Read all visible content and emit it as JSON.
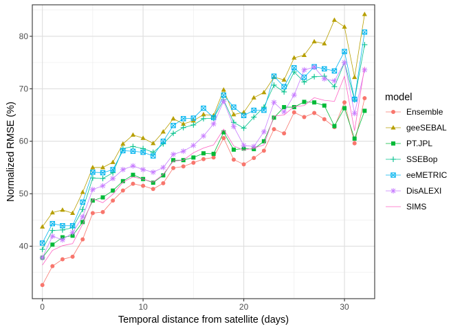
{
  "chart_data": {
    "type": "line",
    "xlabel": "Temporal distance from satellite (days)",
    "ylabel": "Normalized RMSE (%)",
    "xlim": [
      -1,
      33
    ],
    "ylim": [
      30,
      86
    ],
    "xticks": [
      0,
      10,
      20,
      30
    ],
    "yticks": [
      40,
      50,
      60,
      70,
      80
    ],
    "grid": true,
    "legend_title": "model",
    "legend_position": "right",
    "x": [
      0,
      1,
      2,
      3,
      4,
      5,
      6,
      7,
      8,
      9,
      10,
      11,
      12,
      13,
      14,
      15,
      16,
      17,
      18,
      19,
      20,
      21,
      22,
      23,
      24,
      25,
      26,
      27,
      28,
      29,
      30,
      31,
      32
    ],
    "series": [
      {
        "name": "Ensemble",
        "color": "#F8766D",
        "marker": "circle",
        "values": [
          32.6,
          36.2,
          37.5,
          38.0,
          41.3,
          46.3,
          46.5,
          48.7,
          50.6,
          51.9,
          51.5,
          50.9,
          52.0,
          54.9,
          55.2,
          55.9,
          56.6,
          56.9,
          60.6,
          56.5,
          55.6,
          56.8,
          58.2,
          62.3,
          61.5,
          65.5,
          64.6,
          65.4,
          64.2,
          62.7,
          67.4,
          59.6,
          68.2
        ]
      },
      {
        "name": "geeSEBAL",
        "color": "#B79F00",
        "marker": "triangle",
        "values": [
          43.7,
          46.4,
          46.9,
          46.3,
          50.3,
          55.0,
          55.0,
          56.0,
          59.5,
          61.2,
          60.6,
          59.6,
          61.8,
          64.3,
          63.3,
          63.9,
          65.1,
          64.9,
          69.8,
          65.1,
          65.5,
          68.3,
          69.3,
          72.2,
          71.7,
          75.9,
          76.4,
          79.0,
          78.6,
          83.1,
          81.8,
          72.2,
          84.2
        ]
      },
      {
        "name": "PT.JPL",
        "color": "#00BA38",
        "marker": "square",
        "values": [
          37.8,
          40.3,
          41.7,
          42.0,
          44.6,
          48.7,
          49.3,
          50.6,
          52.4,
          53.6,
          52.8,
          52.1,
          53.5,
          56.4,
          56.4,
          56.9,
          57.7,
          57.6,
          61.7,
          58.4,
          58.6,
          58.5,
          60.0,
          64.5,
          66.5,
          66.5,
          67.5,
          67.4,
          66.8,
          62.9,
          66.3,
          60.5,
          65.8
        ]
      },
      {
        "name": "SSEBop",
        "color": "#00C08B",
        "marker": "plus",
        "values": [
          39.4,
          43.0,
          43.1,
          43.5,
          47.0,
          53.0,
          52.9,
          54.0,
          58.6,
          59.0,
          58.6,
          57.9,
          59.5,
          61.5,
          62.6,
          63.1,
          64.3,
          64.4,
          67.9,
          63.6,
          62.5,
          64.6,
          66.5,
          70.7,
          69.4,
          73.2,
          71.3,
          72.3,
          72.4,
          70.4,
          75.0,
          67.9,
          78.4
        ]
      },
      {
        "name": "eeMETRIC",
        "color": "#00B4EF",
        "marker": "square-x",
        "values": [
          40.6,
          44.3,
          43.9,
          43.9,
          48.4,
          54.1,
          54.0,
          54.6,
          58.2,
          58.1,
          57.9,
          57.2,
          60.0,
          63.0,
          64.3,
          64.4,
          66.3,
          64.5,
          68.8,
          66.5,
          64.9,
          65.9,
          65.9,
          72.4,
          70.4,
          74.0,
          72.2,
          74.2,
          73.8,
          73.4,
          77.1,
          68.0,
          80.8
        ]
      },
      {
        "name": "DisALEXI",
        "color": "#C77CFF",
        "marker": "star",
        "values": [
          37.8,
          41.9,
          41.2,
          42.6,
          45.6,
          50.8,
          51.5,
          52.9,
          54.6,
          55.3,
          54.6,
          54.1,
          55.0,
          57.5,
          58.1,
          59.2,
          61.0,
          63.3,
          67.6,
          62.8,
          59.2,
          59.0,
          61.8,
          67.4,
          65.6,
          68.8,
          73.6,
          74.1,
          71.9,
          71.5,
          75.0,
          65.3,
          73.6
        ]
      },
      {
        "name": "SIMS",
        "color": "#FF61C3",
        "marker": "none",
        "values": [
          36.4,
          39.2,
          40.1,
          40.5,
          44.2,
          49.0,
          48.3,
          49.9,
          52.2,
          53.2,
          52.8,
          52.2,
          53.7,
          56.2,
          56.4,
          57.8,
          58.7,
          59.3,
          62.3,
          59.1,
          58.3,
          58.7,
          59.3,
          64.8,
          65.0,
          66.6,
          66.8,
          68.3,
          67.8,
          67.6,
          72.4,
          62.0,
          74.2
        ]
      }
    ]
  }
}
